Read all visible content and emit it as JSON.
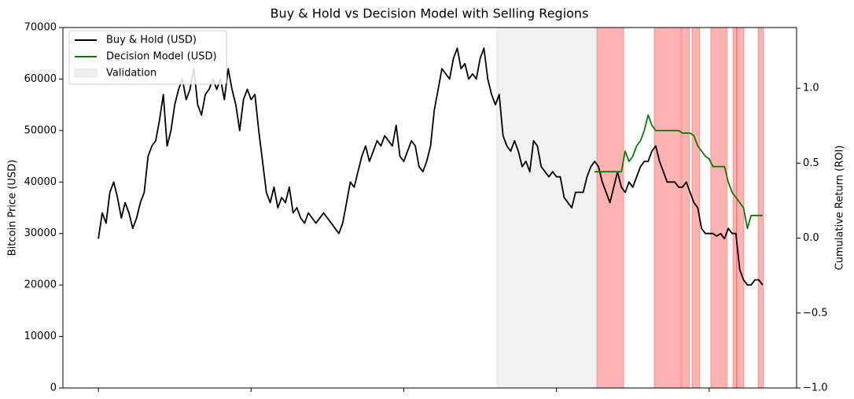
{
  "chart_data": {
    "type": "line",
    "title": "Buy & Hold vs Decision Model with Selling Regions",
    "ylabel": "Bitcoin Price (USD)",
    "y2label": "Cumulative Return (ROI)",
    "xlim": [
      -9.3,
      182.9
    ],
    "xticks": [
      0,
      40,
      80,
      120,
      160
    ],
    "ylim": [
      0,
      70000
    ],
    "yticks": [
      0,
      10000,
      20000,
      30000,
      40000,
      50000,
      60000,
      70000
    ],
    "y2lim": [
      -1.0,
      1.405
    ],
    "y2ticks": [
      {
        "value": -1.0,
        "label": "−1.0"
      },
      {
        "value": -0.5,
        "label": "−0.5"
      },
      {
        "value": 0.0,
        "label": "0.0"
      },
      {
        "value": 0.5,
        "label": "0.5"
      },
      {
        "value": 1.0,
        "label": "1.0"
      }
    ],
    "legend": "upper left",
    "series": [
      {
        "name": "Buy & Hold (USD)",
        "color": "#000000",
        "values": [
          29000,
          34000,
          32000,
          38000,
          40000,
          37000,
          33000,
          36000,
          34000,
          31000,
          33000,
          36000,
          38000,
          45000,
          47000,
          48000,
          52000,
          57000,
          47000,
          50000,
          55000,
          58000,
          60000,
          56000,
          58000,
          62000,
          55000,
          53000,
          57000,
          58000,
          60000,
          58000,
          60000,
          56000,
          62000,
          58000,
          55000,
          50000,
          56000,
          58000,
          56000,
          57000,
          50000,
          44000,
          38000,
          36000,
          39000,
          35000,
          37000,
          36000,
          39000,
          34000,
          35000,
          33000,
          32000,
          34000,
          33000,
          32000,
          33000,
          34000,
          33000,
          32000,
          31000,
          30000,
          32000,
          36000,
          40000,
          39000,
          42000,
          45000,
          47000,
          44000,
          46000,
          48000,
          47000,
          49000,
          48000,
          47000,
          51000,
          45000,
          44000,
          46000,
          48000,
          47000,
          43000,
          42000,
          44000,
          47000,
          54000,
          58000,
          62000,
          61000,
          60000,
          64000,
          66000,
          62000,
          63000,
          60000,
          61000,
          60000,
          64000,
          66000,
          60000,
          57000,
          55000,
          57000,
          49000,
          47000,
          46000,
          48000,
          46000,
          43000,
          44000,
          42000,
          48000,
          47000,
          43000,
          42000,
          41000,
          42000,
          41000,
          41000,
          37000,
          36000,
          35000,
          38000,
          38000,
          38000,
          41000,
          43000,
          44000,
          43000,
          40000,
          38000,
          36000,
          39000,
          42000,
          39000,
          38000,
          40000,
          39000,
          41000,
          43000,
          44000,
          44000,
          46000,
          47000,
          44000,
          42000,
          40000,
          40000,
          40000,
          39000,
          39000,
          40000,
          38000,
          36000,
          35000,
          31000,
          30000,
          30000,
          30000,
          29500,
          30000,
          29000,
          31000,
          30000,
          30000,
          23000,
          21000,
          20000,
          20000,
          21000,
          21000,
          20000
        ]
      },
      {
        "name": "Decision Model (USD)",
        "color": "#008000",
        "values": [
          null,
          null,
          null,
          null,
          null,
          null,
          null,
          null,
          null,
          null,
          null,
          null,
          null,
          null,
          null,
          null,
          null,
          null,
          null,
          null,
          null,
          null,
          null,
          null,
          null,
          null,
          null,
          null,
          null,
          null,
          null,
          null,
          null,
          null,
          null,
          null,
          null,
          null,
          null,
          null,
          null,
          null,
          null,
          null,
          null,
          null,
          null,
          null,
          null,
          null,
          null,
          null,
          null,
          null,
          null,
          null,
          null,
          null,
          null,
          null,
          null,
          null,
          null,
          null,
          null,
          null,
          null,
          null,
          null,
          null,
          null,
          null,
          null,
          null,
          null,
          null,
          null,
          null,
          null,
          null,
          null,
          null,
          null,
          null,
          null,
          null,
          null,
          null,
          null,
          null,
          null,
          null,
          null,
          null,
          null,
          null,
          null,
          null,
          null,
          null,
          null,
          null,
          null,
          null,
          null,
          null,
          null,
          null,
          null,
          null,
          null,
          null,
          null,
          null,
          null,
          null,
          null,
          null,
          null,
          null,
          null,
          null,
          null,
          null,
          null,
          null,
          null,
          null,
          null,
          null,
          42000,
          42000,
          42000,
          42000,
          42000,
          42000,
          42000,
          42000,
          46000,
          44000,
          45000,
          47000,
          48000,
          50000,
          53000,
          51000,
          50000,
          50000,
          50000,
          50000,
          50000,
          50000,
          50000,
          49500,
          49500,
          49500,
          49000,
          47000,
          46000,
          45000,
          44500,
          43000,
          43000,
          43000,
          43000,
          40000,
          38000,
          37000,
          36000,
          35000,
          31000,
          33500,
          33500,
          33500,
          33500
        ]
      }
    ],
    "validation": {
      "name": "Validation",
      "color": "#e0e0e0",
      "range": [
        104.4,
        130.4
      ]
    },
    "sell_color": "#ff0000",
    "sell_regions": [
      [
        130.6,
        137.6
      ],
      [
        145.6,
        152.6
      ],
      [
        152.8,
        154.8
      ],
      [
        155.5,
        157.5
      ],
      [
        160.4,
        164.7
      ],
      [
        166.2,
        167.2
      ],
      [
        167.2,
        169.1
      ],
      [
        172.8,
        174.2
      ]
    ]
  }
}
